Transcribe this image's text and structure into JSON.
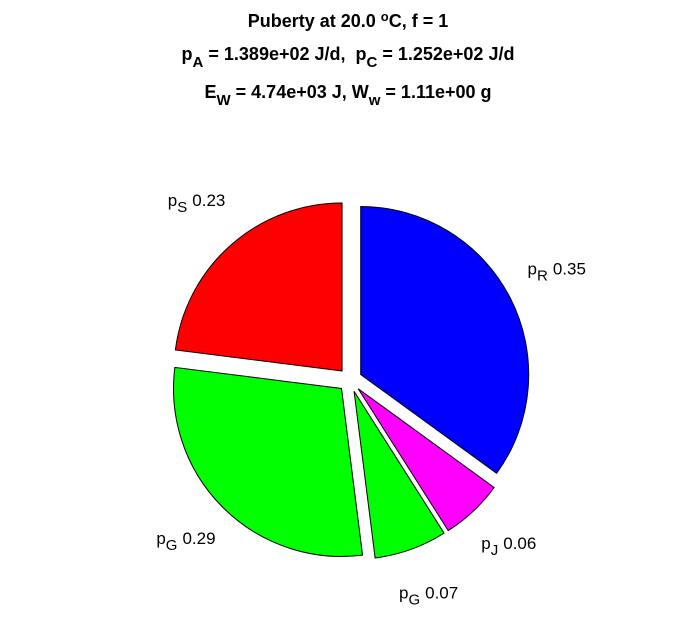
{
  "chart_data": {
    "type": "pie",
    "title": [
      [
        {
          "text": "Puberty at 20.0 "
        },
        {
          "text": "o",
          "script": "super"
        },
        {
          "text": "C, f = 1"
        }
      ],
      [
        {
          "text": "p"
        },
        {
          "text": "A",
          "script": "sub"
        },
        {
          "text": " = 1.389e+02 J/d,  p"
        },
        {
          "text": "C",
          "script": "sub"
        },
        {
          "text": " = 1.252e+02 J/d"
        }
      ],
      [
        {
          "text": "E"
        },
        {
          "text": "W",
          "script": "sub"
        },
        {
          "text": " = 4.74e+03 J, W"
        },
        {
          "text": "w",
          "script": "sub"
        },
        {
          "text": " = 1.11e+00 g"
        }
      ]
    ],
    "label_base": "p",
    "categories": [
      "R",
      "J",
      "G",
      "G",
      "S"
    ],
    "values": [
      0.35,
      0.06,
      0.07,
      0.29,
      0.23
    ],
    "colors": [
      "#0000ff",
      "#ff00ff",
      "#00ff00",
      "#00ff00",
      "#ff0000"
    ],
    "explode": true
  }
}
